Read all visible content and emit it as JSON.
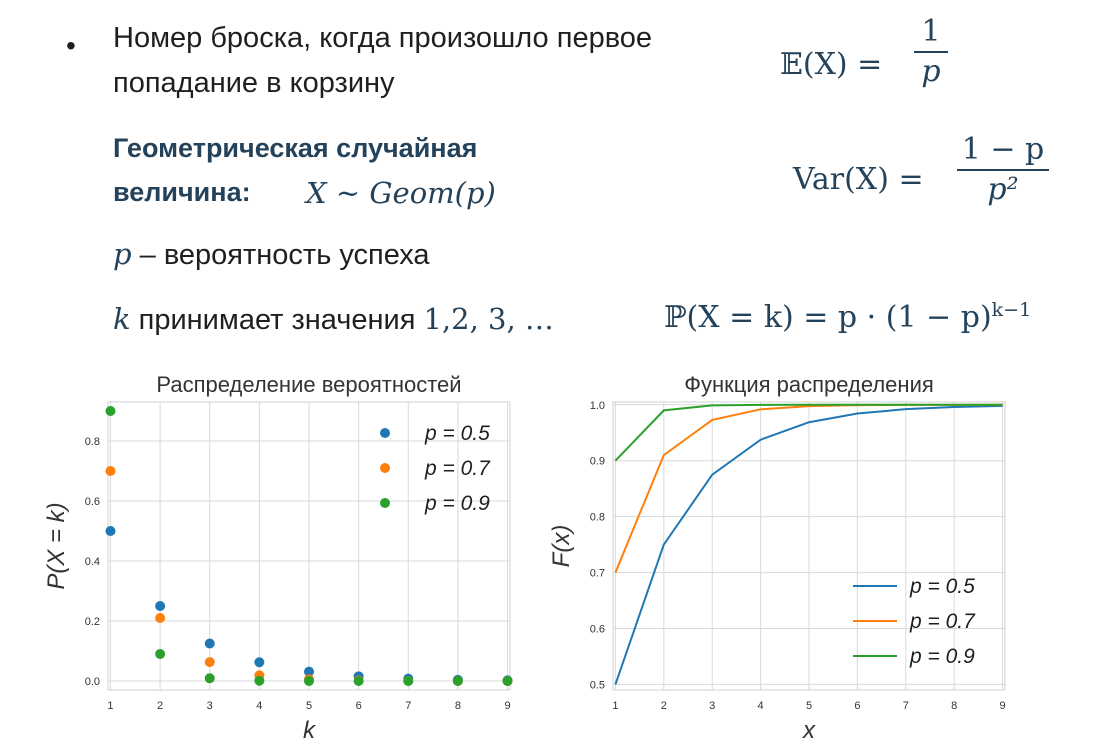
{
  "bullet": {
    "symbol": "•",
    "line1": "Номер броска, когда произошло первое",
    "line2": "попадание в корзину"
  },
  "definition": {
    "bold_line1": "Геометрическая случайная",
    "bold_line2": "величина:",
    "formula": "X ~ Geom(p)"
  },
  "param": {
    "symbol": "p",
    "text": " – вероятность успеха"
  },
  "support": {
    "symbol": "k",
    "text": " принимает значения ",
    "values": "1,2, 3, …"
  },
  "formulas": {
    "expectation_lhs": "𝔼(X) =",
    "expectation_num": "1",
    "expectation_den": "p",
    "variance_lhs": "Var(X) =",
    "variance_num": "1 − p",
    "variance_den": "p²",
    "pmf_lhs": "ℙ(X = k) = p · (1 − p)",
    "pmf_exp": "k−1"
  },
  "colors": {
    "blue": "#1f77b4",
    "orange": "#ff7f0e",
    "green": "#2ca02c",
    "grid": "#d9d9d9",
    "heading": "#24425a"
  },
  "chart_data": [
    {
      "type": "scatter",
      "title": "Распределение вероятностей",
      "xlabel": "k",
      "ylabel": "P(X = k)",
      "x": [
        1,
        2,
        3,
        4,
        5,
        6,
        7,
        8,
        9
      ],
      "xticks": [
        "1",
        "2",
        "3",
        "4",
        "5",
        "6",
        "7",
        "8",
        "9"
      ],
      "yticks": [
        "0.0",
        "0.2",
        "0.4",
        "0.6",
        "0.8"
      ],
      "xlim": [
        0.95,
        9.05
      ],
      "ylim": [
        -0.03,
        0.93
      ],
      "grid": true,
      "legend": "top-right",
      "series": [
        {
          "name": "p = 0.5",
          "color": "#1f77b4",
          "values": [
            0.5,
            0.25,
            0.125,
            0.0625,
            0.03125,
            0.015625,
            0.0078,
            0.0039,
            0.002
          ]
        },
        {
          "name": "p = 0.7",
          "color": "#ff7f0e",
          "values": [
            0.7,
            0.21,
            0.063,
            0.0189,
            0.0057,
            0.0017,
            0.0005,
            0.0002,
            0.0
          ]
        },
        {
          "name": "p = 0.9",
          "color": "#2ca02c",
          "values": [
            0.9,
            0.09,
            0.009,
            0.0009,
            0.0001,
            0.0,
            0.0,
            0.0,
            0.0
          ]
        }
      ]
    },
    {
      "type": "line",
      "title": "Функция распределения",
      "xlabel": "x",
      "ylabel": "F(x)",
      "x": [
        1,
        2,
        3,
        4,
        5,
        6,
        7,
        8,
        9
      ],
      "xticks": [
        "1",
        "2",
        "3",
        "4",
        "5",
        "6",
        "7",
        "8",
        "9"
      ],
      "yticks": [
        "0.5",
        "0.6",
        "0.7",
        "0.8",
        "0.9",
        "1.0"
      ],
      "xlim": [
        0.95,
        9.05
      ],
      "ylim": [
        0.49,
        1.005
      ],
      "grid": true,
      "legend": "lower-right",
      "series": [
        {
          "name": "p = 0.5",
          "color": "#1f77b4",
          "values": [
            0.5,
            0.75,
            0.875,
            0.9375,
            0.9688,
            0.9844,
            0.9922,
            0.9961,
            0.998
          ]
        },
        {
          "name": "p = 0.7",
          "color": "#ff7f0e",
          "values": [
            0.7,
            0.91,
            0.973,
            0.9919,
            0.9976,
            0.9993,
            0.9998,
            0.9999,
            1.0
          ]
        },
        {
          "name": "p = 0.9",
          "color": "#2ca02c",
          "values": [
            0.9,
            0.99,
            0.999,
            0.9999,
            1.0,
            1.0,
            1.0,
            1.0,
            1.0
          ]
        }
      ]
    }
  ]
}
